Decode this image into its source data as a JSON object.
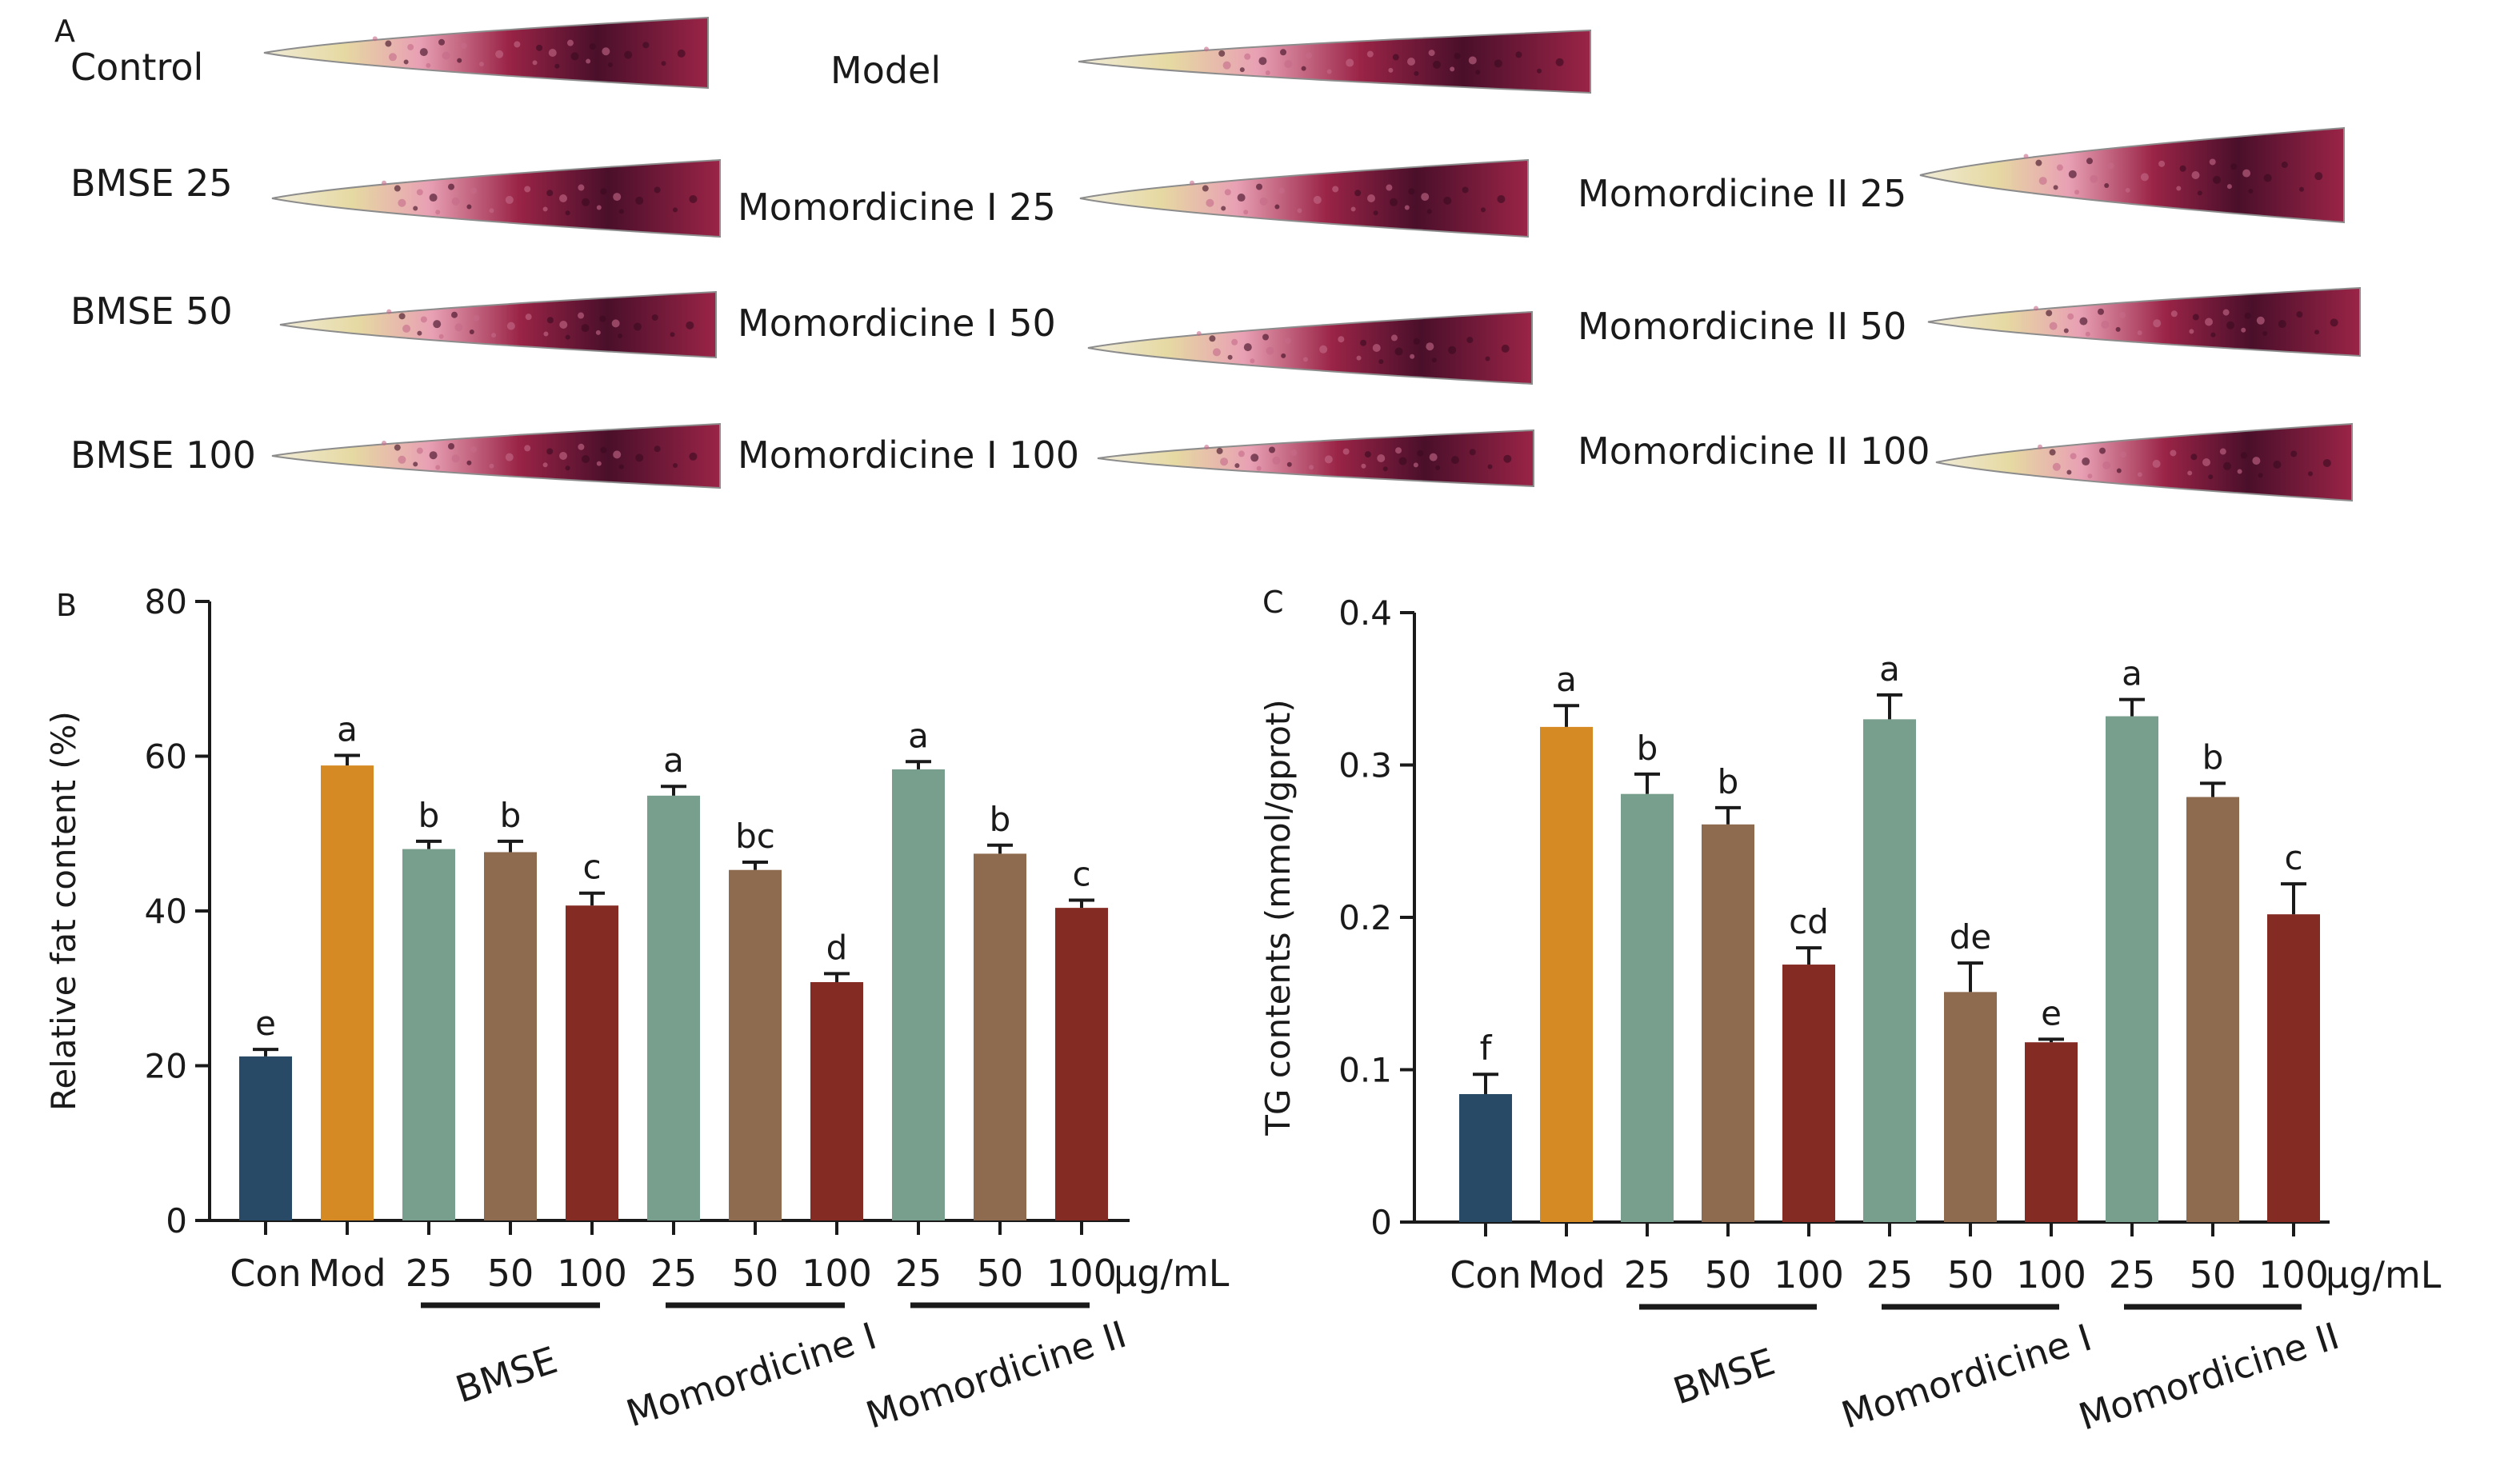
{
  "panel_a": {
    "letter": "A",
    "worm_labels": [
      "Control",
      "Model",
      "BMSE 25",
      "Momordicine I 25",
      "Momordicine II 25",
      "BMSE 50",
      "Momordicine I 50",
      "Momordicine II 50",
      "BMSE 100",
      "Momordicine I 100",
      "Momordicine II 100"
    ],
    "colors": {
      "stain_dark": "#4a0f2a",
      "stain_mid": "#9a2447",
      "stain_light": "#e8a0b4",
      "head_tan": "#e6d9a2",
      "outline": "#8c8c8c"
    }
  },
  "chart_data": [
    {
      "panel_letter": "B",
      "type": "bar",
      "ylabel": "Relative fat content (%)",
      "ylim": [
        0,
        80
      ],
      "yticks": [
        "0",
        "20",
        "40",
        "60",
        "80"
      ],
      "categories": [
        "Con",
        "Mod",
        "25",
        "50",
        "100",
        "25",
        "50",
        "100",
        "25",
        "50",
        "100"
      ],
      "values": [
        21.2,
        58.8,
        48.0,
        47.6,
        40.7,
        54.9,
        45.3,
        30.8,
        58.3,
        47.4,
        40.4
      ],
      "errors": [
        0.9,
        1.3,
        1.0,
        1.4,
        1.6,
        1.2,
        1.0,
        1.1,
        1.0,
        1.1,
        1.0
      ],
      "letters": [
        "e",
        "a",
        "b",
        "b",
        "c",
        "a",
        "bc",
        "d",
        "a",
        "b",
        "c"
      ],
      "unit": "μg/mL",
      "groups": [
        {
          "name": "BMSE",
          "from": 2,
          "to": 4
        },
        {
          "name": "Momordicine I",
          "from": 5,
          "to": 7
        },
        {
          "name": "Momordicine II",
          "from": 8,
          "to": 10
        }
      ]
    },
    {
      "panel_letter": "C",
      "type": "bar",
      "ylabel": "TG contents (mmol/gprot)",
      "ylim": [
        0,
        0.4
      ],
      "yticks": [
        "0",
        "0.1",
        "0.2",
        "0.3",
        "0.4"
      ],
      "categories": [
        "Con",
        "Mod",
        "25",
        "50",
        "100",
        "25",
        "50",
        "100",
        "25",
        "50",
        "100"
      ],
      "values": [
        0.084,
        0.325,
        0.281,
        0.261,
        0.169,
        0.33,
        0.151,
        0.118,
        0.332,
        0.279,
        0.202
      ],
      "errors": [
        0.013,
        0.014,
        0.013,
        0.011,
        0.011,
        0.016,
        0.019,
        0.002,
        0.011,
        0.009,
        0.02
      ],
      "letters": [
        "f",
        "a",
        "b",
        "b",
        "cd",
        "a",
        "de",
        "e",
        "a",
        "b",
        "c"
      ],
      "unit": "μg/mL",
      "groups": [
        {
          "name": "BMSE",
          "from": 2,
          "to": 4
        },
        {
          "name": "Momordicine I",
          "from": 5,
          "to": 7
        },
        {
          "name": "Momordicine II",
          "from": 8,
          "to": 10
        }
      ]
    }
  ],
  "bar_colors": [
    "#284a66",
    "#d68a23",
    "#789e8d",
    "#8e6a4f",
    "#842b23",
    "#789e8d",
    "#8e6a4f",
    "#842b23",
    "#789e8d",
    "#8e6a4f",
    "#842b23"
  ]
}
